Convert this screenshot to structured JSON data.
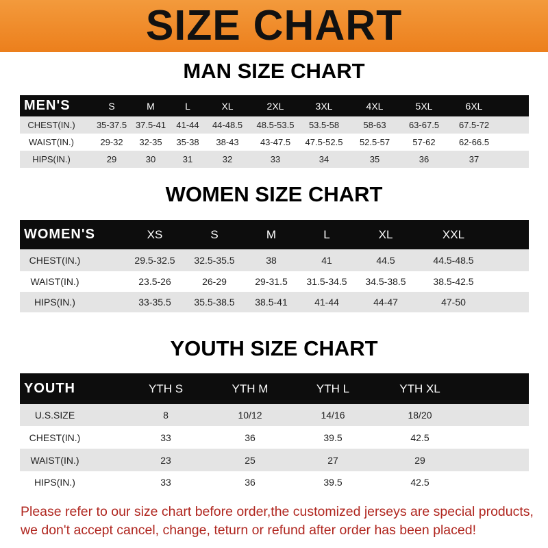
{
  "banner": {
    "title": "SIZE CHART",
    "color": "#ee8526"
  },
  "men": {
    "title": "MAN SIZE CHART",
    "header": "MEN'S",
    "sizes": [
      "S",
      "M",
      "L",
      "XL",
      "2XL",
      "3XL",
      "4XL",
      "5XL",
      "6XL"
    ],
    "rows": [
      {
        "label": "CHEST(IN.)",
        "values": [
          "35-37.5",
          "37.5-41",
          "41-44",
          "44-48.5",
          "48.5-53.5",
          "53.5-58",
          "58-63",
          "63-67.5",
          "67.5-72"
        ]
      },
      {
        "label": "WAIST(IN.)",
        "values": [
          "29-32",
          "32-35",
          "35-38",
          "38-43",
          "43-47.5",
          "47.5-52.5",
          "52.5-57",
          "57-62",
          "62-66.5"
        ]
      },
      {
        "label": "HIPS(IN.)",
        "values": [
          "29",
          "30",
          "31",
          "32",
          "33",
          "34",
          "35",
          "36",
          "37"
        ]
      }
    ]
  },
  "women": {
    "title": "WOMEN SIZE CHART",
    "header": "WOMEN'S",
    "sizes": [
      "XS",
      "S",
      "M",
      "L",
      "XL",
      "XXL"
    ],
    "rows": [
      {
        "label": "CHEST(IN.)",
        "values": [
          "29.5-32.5",
          "32.5-35.5",
          "38",
          "41",
          "44.5",
          "44.5-48.5"
        ]
      },
      {
        "label": "WAIST(IN.)",
        "values": [
          "23.5-26",
          "26-29",
          "29-31.5",
          "31.5-34.5",
          "34.5-38.5",
          "38.5-42.5"
        ]
      },
      {
        "label": "HIPS(IN.)",
        "values": [
          "33-35.5",
          "35.5-38.5",
          "38.5-41",
          "41-44",
          "44-47",
          "47-50"
        ]
      }
    ]
  },
  "youth": {
    "title": "YOUTH SIZE CHART",
    "header": "YOUTH",
    "sizes": [
      "YTH S",
      "YTH M",
      "YTH L",
      "YTH XL"
    ],
    "rows": [
      {
        "label": "U.S.SIZE",
        "values": [
          "8",
          "10/12",
          "14/16",
          "18/20"
        ]
      },
      {
        "label": "CHEST(IN.)",
        "values": [
          "33",
          "36",
          "39.5",
          "42.5"
        ]
      },
      {
        "label": "WAIST(IN.)",
        "values": [
          "23",
          "25",
          "27",
          "29"
        ]
      },
      {
        "label": "HIPS(IN.)",
        "values": [
          "33",
          "36",
          "39.5",
          "42.5"
        ]
      }
    ]
  },
  "notice": {
    "line1": "Please refer to our size chart before order,the customized jerseys are special products,",
    "line2": "we don't accept cancel, change, teturn or refund after order has been placed!",
    "color": "#b0261f"
  }
}
